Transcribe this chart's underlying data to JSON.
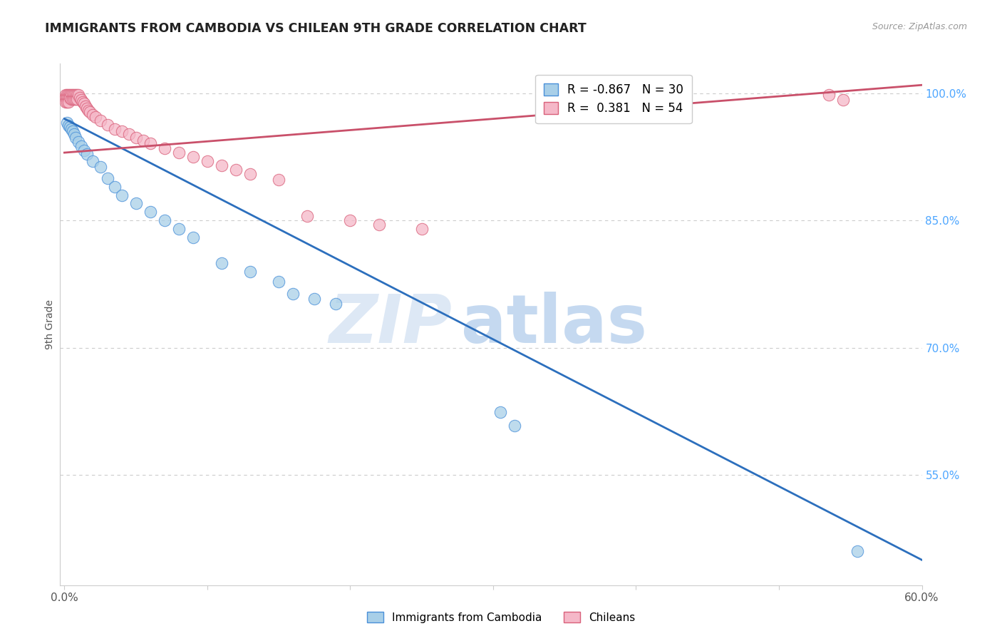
{
  "title": "IMMIGRANTS FROM CAMBODIA VS CHILEAN 9TH GRADE CORRELATION CHART",
  "source": "Source: ZipAtlas.com",
  "ylabel": "9th Grade",
  "xlim": [
    -0.003,
    0.6
  ],
  "ylim": [
    0.42,
    1.035
  ],
  "xticks": [
    0.0,
    0.1,
    0.2,
    0.3,
    0.4,
    0.5,
    0.6
  ],
  "xticklabels": [
    "0.0%",
    "",
    "",
    "",
    "",
    "",
    "60.0%"
  ],
  "yticks_right": [
    0.55,
    0.7,
    0.85,
    1.0
  ],
  "ytick_right_labels": [
    "55.0%",
    "70.0%",
    "85.0%",
    "100.0%"
  ],
  "blue_color": "#a8cfe8",
  "pink_color": "#f5b8c8",
  "blue_edge_color": "#4a90d9",
  "pink_edge_color": "#d9607a",
  "blue_line_color": "#2c6fbd",
  "pink_line_color": "#c9506a",
  "blue_R": -0.867,
  "blue_N": 30,
  "pink_R": 0.381,
  "pink_N": 54,
  "blue_line_x": [
    0.0,
    0.602
  ],
  "blue_line_y": [
    0.97,
    0.448
  ],
  "pink_line_x": [
    0.0,
    0.602
  ],
  "pink_line_y": [
    0.93,
    1.01
  ],
  "blue_x": [
    0.002,
    0.003,
    0.004,
    0.005,
    0.006,
    0.007,
    0.008,
    0.01,
    0.012,
    0.014,
    0.016,
    0.02,
    0.025,
    0.03,
    0.035,
    0.04,
    0.05,
    0.06,
    0.07,
    0.08,
    0.09,
    0.11,
    0.13,
    0.15,
    0.16,
    0.175,
    0.19,
    0.305,
    0.315,
    0.555
  ],
  "blue_y": [
    0.965,
    0.962,
    0.96,
    0.958,
    0.955,
    0.952,
    0.948,
    0.943,
    0.938,
    0.933,
    0.928,
    0.92,
    0.913,
    0.9,
    0.89,
    0.88,
    0.87,
    0.86,
    0.85,
    0.84,
    0.83,
    0.8,
    0.79,
    0.778,
    0.764,
    0.758,
    0.752,
    0.624,
    0.608,
    0.46
  ],
  "pink_x": [
    0.001,
    0.001,
    0.001,
    0.002,
    0.002,
    0.002,
    0.003,
    0.003,
    0.003,
    0.004,
    0.004,
    0.005,
    0.005,
    0.006,
    0.006,
    0.007,
    0.007,
    0.008,
    0.008,
    0.009,
    0.009,
    0.01,
    0.011,
    0.012,
    0.013,
    0.014,
    0.015,
    0.016,
    0.017,
    0.018,
    0.02,
    0.022,
    0.025,
    0.03,
    0.035,
    0.04,
    0.045,
    0.05,
    0.055,
    0.06,
    0.07,
    0.08,
    0.09,
    0.1,
    0.11,
    0.12,
    0.13,
    0.15,
    0.17,
    0.2,
    0.22,
    0.25,
    0.535,
    0.545
  ],
  "pink_y": [
    0.998,
    0.995,
    0.99,
    0.998,
    0.995,
    0.99,
    0.998,
    0.995,
    0.99,
    0.998,
    0.995,
    0.998,
    0.993,
    0.998,
    0.993,
    0.998,
    0.993,
    0.998,
    0.993,
    0.998,
    0.993,
    0.998,
    0.995,
    0.992,
    0.99,
    0.988,
    0.985,
    0.982,
    0.98,
    0.978,
    0.975,
    0.972,
    0.968,
    0.963,
    0.958,
    0.955,
    0.952,
    0.948,
    0.944,
    0.941,
    0.935,
    0.93,
    0.925,
    0.92,
    0.915,
    0.91,
    0.905,
    0.898,
    0.855,
    0.85,
    0.845,
    0.84,
    0.998,
    0.992
  ],
  "background_color": "#ffffff",
  "grid_color": "#cccccc",
  "watermark_zip_color": "#dde8f5",
  "watermark_atlas_color": "#c5d9f0"
}
